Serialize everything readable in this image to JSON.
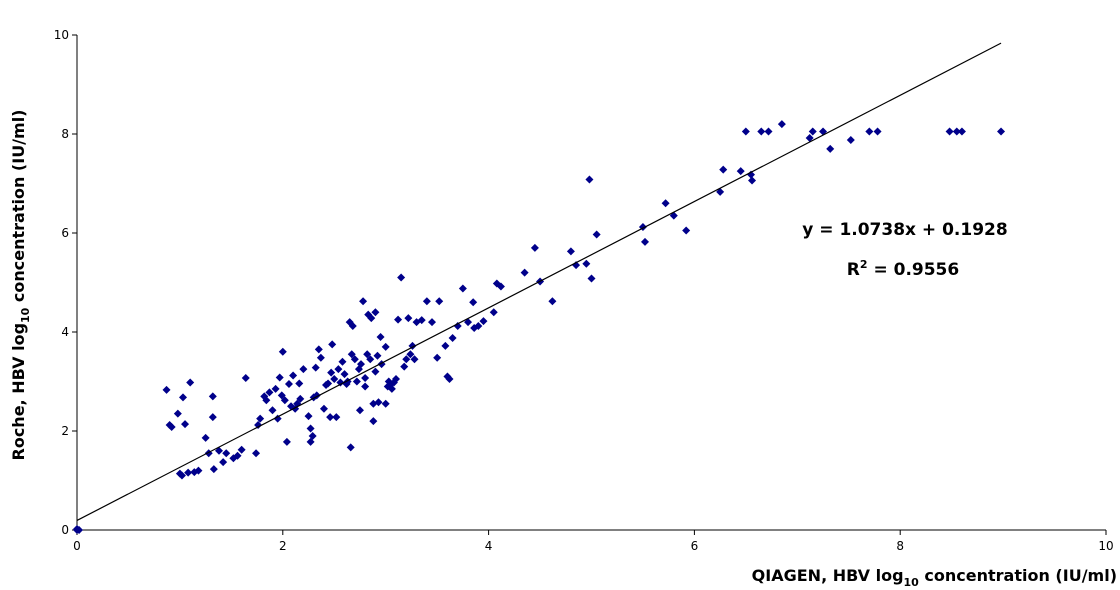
{
  "chart_data": {
    "type": "scatter",
    "xlabel_parts": {
      "pre": "QIAGEN, HBV log",
      "sub": "10",
      "post": " concentration (IU/ml)"
    },
    "ylabel_parts": {
      "pre": "Roche, HBV log",
      "sub": "10",
      "post": " concentration (IU/ml)"
    },
    "xlim": [
      0,
      10
    ],
    "ylim": [
      0,
      10
    ],
    "xticks": [
      "0",
      "2",
      "4",
      "6",
      "8",
      "10"
    ],
    "yticks": [
      "0",
      "2",
      "4",
      "6",
      "8",
      "10"
    ],
    "marker_color": "#00008B",
    "trendline": {
      "slope": 1.0738,
      "intercept": 0.1928,
      "x_range": [
        0,
        8.98
      ]
    },
    "equation": {
      "line1": "y = 1.0738x + 0.1928",
      "r2_pre": "R",
      "r2_sup": "2",
      "r2_post": " = 0.9556"
    },
    "points": [
      [
        0.0,
        0.0
      ],
      [
        0.0,
        0.02
      ],
      [
        0.02,
        0.0
      ],
      [
        0.87,
        2.83
      ],
      [
        0.9,
        2.12
      ],
      [
        0.92,
        2.08
      ],
      [
        0.98,
        2.35
      ],
      [
        1.0,
        1.14
      ],
      [
        1.02,
        1.1
      ],
      [
        1.03,
        2.68
      ],
      [
        1.05,
        2.14
      ],
      [
        1.08,
        1.16
      ],
      [
        1.1,
        2.98
      ],
      [
        1.14,
        1.17
      ],
      [
        1.18,
        1.2
      ],
      [
        1.25,
        1.86
      ],
      [
        1.28,
        1.55
      ],
      [
        1.32,
        2.7
      ],
      [
        1.32,
        2.28
      ],
      [
        1.33,
        1.23
      ],
      [
        1.38,
        1.6
      ],
      [
        1.42,
        1.37
      ],
      [
        1.45,
        1.55
      ],
      [
        1.52,
        1.45
      ],
      [
        1.56,
        1.5
      ],
      [
        1.6,
        1.62
      ],
      [
        1.64,
        3.07
      ],
      [
        1.74,
        1.55
      ],
      [
        1.76,
        2.12
      ],
      [
        1.78,
        2.25
      ],
      [
        1.82,
        2.7
      ],
      [
        1.84,
        2.62
      ],
      [
        1.87,
        2.78
      ],
      [
        1.9,
        2.42
      ],
      [
        1.93,
        2.85
      ],
      [
        1.95,
        2.25
      ],
      [
        1.97,
        3.08
      ],
      [
        1.99,
        2.72
      ],
      [
        2.0,
        3.6
      ],
      [
        2.02,
        2.62
      ],
      [
        2.04,
        1.78
      ],
      [
        2.06,
        2.95
      ],
      [
        2.08,
        2.5
      ],
      [
        2.1,
        3.12
      ],
      [
        2.12,
        2.45
      ],
      [
        2.14,
        2.55
      ],
      [
        2.16,
        2.96
      ],
      [
        2.17,
        2.65
      ],
      [
        2.2,
        3.25
      ],
      [
        2.25,
        2.3
      ],
      [
        2.27,
        2.05
      ],
      [
        2.27,
        1.78
      ],
      [
        2.29,
        1.9
      ],
      [
        2.3,
        2.68
      ],
      [
        2.32,
        3.28
      ],
      [
        2.33,
        2.72
      ],
      [
        2.35,
        3.65
      ],
      [
        2.37,
        3.48
      ],
      [
        2.4,
        2.45
      ],
      [
        2.42,
        2.93
      ],
      [
        2.44,
        2.96
      ],
      [
        2.46,
        2.28
      ],
      [
        2.47,
        3.18
      ],
      [
        2.48,
        3.75
      ],
      [
        2.5,
        3.05
      ],
      [
        2.52,
        2.28
      ],
      [
        2.54,
        3.25
      ],
      [
        2.56,
        2.98
      ],
      [
        2.58,
        3.4
      ],
      [
        2.6,
        3.15
      ],
      [
        2.62,
        2.95
      ],
      [
        2.63,
        3.0
      ],
      [
        2.65,
        4.2
      ],
      [
        2.66,
        1.67
      ],
      [
        2.67,
        3.55
      ],
      [
        2.68,
        4.12
      ],
      [
        2.7,
        3.45
      ],
      [
        2.72,
        3.0
      ],
      [
        2.74,
        3.25
      ],
      [
        2.75,
        2.42
      ],
      [
        2.76,
        3.35
      ],
      [
        2.78,
        4.62
      ],
      [
        2.8,
        3.07
      ],
      [
        2.8,
        2.9
      ],
      [
        2.82,
        3.55
      ],
      [
        2.83,
        4.35
      ],
      [
        2.85,
        3.45
      ],
      [
        2.86,
        4.28
      ],
      [
        2.88,
        2.2
      ],
      [
        2.88,
        2.55
      ],
      [
        2.9,
        3.2
      ],
      [
        2.9,
        4.4
      ],
      [
        2.92,
        3.52
      ],
      [
        2.93,
        2.58
      ],
      [
        2.95,
        3.9
      ],
      [
        2.96,
        3.35
      ],
      [
        3.0,
        2.55
      ],
      [
        3.0,
        3.7
      ],
      [
        3.02,
        2.9
      ],
      [
        3.03,
        3.0
      ],
      [
        3.05,
        2.95
      ],
      [
        3.06,
        2.85
      ],
      [
        3.08,
        2.98
      ],
      [
        3.1,
        3.05
      ],
      [
        3.12,
        4.25
      ],
      [
        3.15,
        5.1
      ],
      [
        3.18,
        3.3
      ],
      [
        3.2,
        3.45
      ],
      [
        3.22,
        4.28
      ],
      [
        3.24,
        3.55
      ],
      [
        3.26,
        3.72
      ],
      [
        3.28,
        3.45
      ],
      [
        3.3,
        4.2
      ],
      [
        3.35,
        4.24
      ],
      [
        3.4,
        4.62
      ],
      [
        3.45,
        4.2
      ],
      [
        3.5,
        3.48
      ],
      [
        3.52,
        4.62
      ],
      [
        3.58,
        3.72
      ],
      [
        3.6,
        3.1
      ],
      [
        3.62,
        3.05
      ],
      [
        3.65,
        3.88
      ],
      [
        3.7,
        4.12
      ],
      [
        3.75,
        4.88
      ],
      [
        3.8,
        4.2
      ],
      [
        3.85,
        4.6
      ],
      [
        3.86,
        4.08
      ],
      [
        3.9,
        4.12
      ],
      [
        3.95,
        4.22
      ],
      [
        4.05,
        4.4
      ],
      [
        4.08,
        4.98
      ],
      [
        4.12,
        4.92
      ],
      [
        4.35,
        5.2
      ],
      [
        4.45,
        5.7
      ],
      [
        4.5,
        5.02
      ],
      [
        4.62,
        4.62
      ],
      [
        4.8,
        5.63
      ],
      [
        4.85,
        5.35
      ],
      [
        4.95,
        5.38
      ],
      [
        4.98,
        7.08
      ],
      [
        5.0,
        5.08
      ],
      [
        5.05,
        5.97
      ],
      [
        5.5,
        6.12
      ],
      [
        5.52,
        5.82
      ],
      [
        5.72,
        6.6
      ],
      [
        5.8,
        6.35
      ],
      [
        5.92,
        6.05
      ],
      [
        6.25,
        6.83
      ],
      [
        6.28,
        7.28
      ],
      [
        6.45,
        7.25
      ],
      [
        6.5,
        8.05
      ],
      [
        6.55,
        7.18
      ],
      [
        6.56,
        7.06
      ],
      [
        6.65,
        8.05
      ],
      [
        6.72,
        8.05
      ],
      [
        6.85,
        8.2
      ],
      [
        7.12,
        7.92
      ],
      [
        7.15,
        8.05
      ],
      [
        7.25,
        8.05
      ],
      [
        7.32,
        7.7
      ],
      [
        7.52,
        7.88
      ],
      [
        7.7,
        8.05
      ],
      [
        7.78,
        8.05
      ],
      [
        8.48,
        8.05
      ],
      [
        8.55,
        8.05
      ],
      [
        8.6,
        8.05
      ],
      [
        8.98,
        8.05
      ]
    ]
  }
}
